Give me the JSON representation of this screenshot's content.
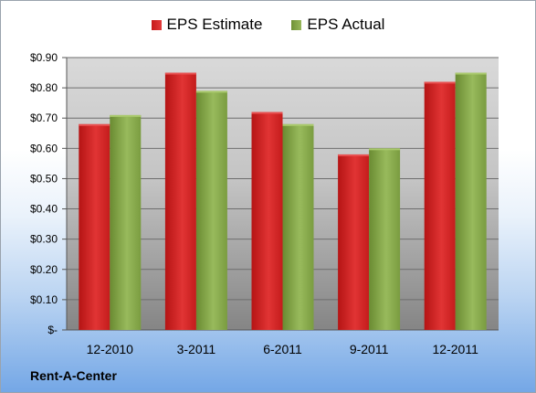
{
  "legend": {
    "estimate_label": "EPS Estimate",
    "actual_label": "EPS Actual"
  },
  "company": "Rent-A-Center",
  "colors": {
    "estimate": "#d42424",
    "actual": "#86a84a",
    "plot_background_top": "#d7d7d7",
    "plot_background_bottom": "#8a8a8a"
  },
  "chart_data": {
    "type": "bar",
    "categories": [
      "12-2010",
      "3-2011",
      "6-2011",
      "9-2011",
      "12-2011"
    ],
    "series": [
      {
        "name": "EPS Estimate",
        "values": [
          0.68,
          0.85,
          0.72,
          0.58,
          0.82
        ]
      },
      {
        "name": "EPS Actual",
        "values": [
          0.71,
          0.79,
          0.68,
          0.6,
          0.85
        ]
      }
    ],
    "ylim": [
      0,
      0.9
    ],
    "yticks": [
      0,
      0.1,
      0.2,
      0.3,
      0.4,
      0.5,
      0.6,
      0.7,
      0.8,
      0.9
    ],
    "ytick_labels": [
      "$-",
      "$0.10",
      "$0.20",
      "$0.30",
      "$0.40",
      "$0.50",
      "$0.60",
      "$0.70",
      "$0.80",
      "$0.90"
    ],
    "grid": true,
    "legend_position": "top"
  }
}
